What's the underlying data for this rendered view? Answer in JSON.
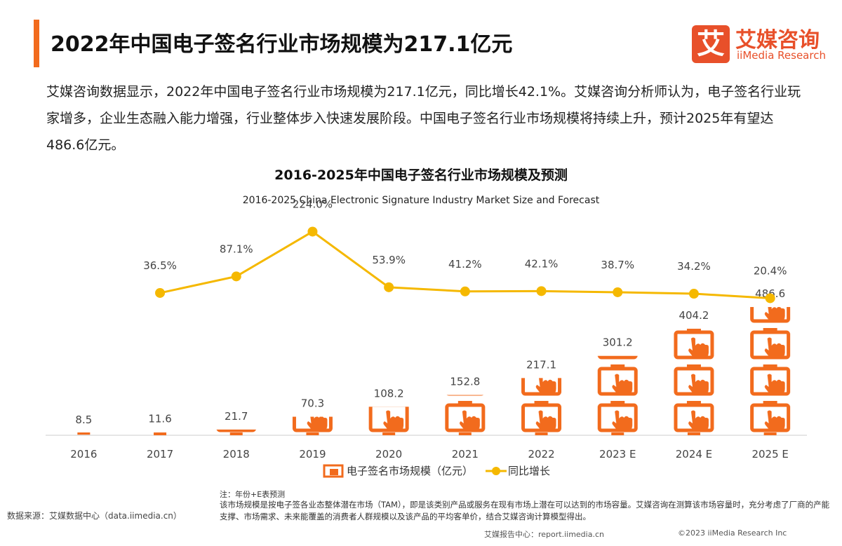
{
  "header": {
    "title": "2022年中国电子签名行业市场规模为217.1亿元",
    "logo_mark": "艾",
    "logo_cn": "艾媒咨询",
    "logo_en": "iiMedia Research"
  },
  "intro": "艾媒咨询数据显示，2022年中国电子签名行业市场规模为217.1亿元，同比增长42.1%。艾媒咨询分析师认为，电子签名行业玩家增多，企业生态融入能力增强，行业整体步入快速发展阶段。中国电子签名行业市场规模将持续上升，预计2025年有望达486.6亿元。",
  "chart_data": {
    "type": "bar",
    "title": "2016-2025年中国电子签名行业市场规模及预测",
    "subtitle": "2016-2025 China Electronic Signature Industry Market Size and Forecast",
    "categories": [
      "2016",
      "2017",
      "2018",
      "2019",
      "2020",
      "2021",
      "2022",
      "2023 E",
      "2024 E",
      "2025 E"
    ],
    "series": [
      {
        "name": "电子签名市场规模（亿元）",
        "type": "bar",
        "color": "#f26b1d",
        "values": [
          8.5,
          11.6,
          21.7,
          70.3,
          108.2,
          152.8,
          217.1,
          301.2,
          404.2,
          486.6
        ]
      },
      {
        "name": "同比增长",
        "type": "line",
        "axis": "y2",
        "color": "#f5b800",
        "values": [
          null,
          36.5,
          87.1,
          224.0,
          53.9,
          41.2,
          42.1,
          38.7,
          34.2,
          20.4
        ],
        "value_labels": [
          null,
          "36.5%",
          "87.1%",
          "224.0%",
          "53.9%",
          "41.2%",
          "42.1%",
          "38.7%",
          "34.2%",
          "20.4%"
        ]
      }
    ],
    "ylim": [
      0,
      500
    ],
    "y2lim": [
      0,
      300
    ]
  },
  "notes": {
    "label": "注：年份+E表预测",
    "text": "该市场规模是按电子签各业态整体潜在市场（TAM），即是该类别产品或服务在现有市场上潜在可以达到的市场容量。艾媒咨询在测算该市场容量时，充分考虑了厂商的产能支撑、市场需求、未来能覆盖的消费者人群规模以及该产品的平均客单价，结合艾媒咨询计算模型得出。",
    "source": "数据来源：艾媒数据中心（data.iimedia.cn）"
  },
  "footer": {
    "site": "艾媒报告中心：report.iimedia.cn",
    "copyright": "©2023  iiMedia Research  Inc"
  }
}
